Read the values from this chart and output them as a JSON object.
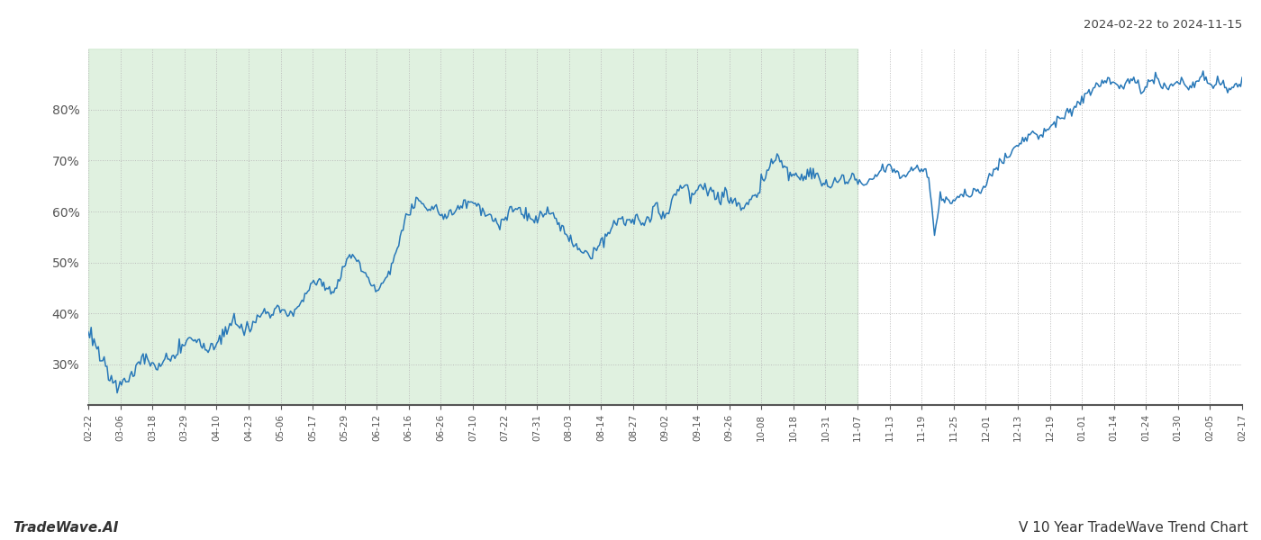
{
  "title_top_right": "2024-02-22 to 2024-11-15",
  "title_bottom_right": "V 10 Year TradeWave Trend Chart",
  "title_bottom_left": "TradeWave.AI",
  "line_color": "#2878b8",
  "bg_color": "#ffffff",
  "shaded_color": "#c8e6c8",
  "shaded_alpha": 0.55,
  "ylim": [
    22,
    92
  ],
  "yticks": [
    30,
    40,
    50,
    60,
    70,
    80
  ],
  "grid_color": "#bbbbbb",
  "grid_style": ":",
  "x_labels": [
    "02-22",
    "03-06",
    "03-18",
    "03-29",
    "04-10",
    "04-23",
    "05-06",
    "05-17",
    "05-29",
    "06-12",
    "06-16",
    "06-26",
    "07-10",
    "07-22",
    "07-31",
    "08-03",
    "08-14",
    "08-27",
    "09-02",
    "09-14",
    "09-26",
    "10-08",
    "10-18",
    "10-31",
    "11-07",
    "11-13",
    "11-19",
    "11-25",
    "12-01",
    "12-13",
    "12-19",
    "01-01",
    "01-14",
    "01-24",
    "01-30",
    "02-05",
    "02-17"
  ],
  "shaded_start_label": "02-22",
  "shaded_end_label": "11-07",
  "waypoints": [
    [
      0,
      36.0
    ],
    [
      2,
      34.5
    ],
    [
      4,
      32.0
    ],
    [
      6,
      29.5
    ],
    [
      8,
      27.0
    ],
    [
      10,
      26.0
    ],
    [
      12,
      27.5
    ],
    [
      13,
      27.0
    ],
    [
      14,
      26.5
    ],
    [
      15,
      27.5
    ],
    [
      16,
      28.5
    ],
    [
      17,
      30.0
    ],
    [
      19,
      31.5
    ],
    [
      21,
      31.0
    ],
    [
      23,
      30.0
    ],
    [
      25,
      29.5
    ],
    [
      27,
      31.0
    ],
    [
      29,
      31.5
    ],
    [
      31,
      32.0
    ],
    [
      33,
      33.5
    ],
    [
      35,
      35.5
    ],
    [
      37,
      34.5
    ],
    [
      39,
      33.5
    ],
    [
      41,
      32.5
    ],
    [
      43,
      33.5
    ],
    [
      45,
      35.0
    ],
    [
      47,
      36.5
    ],
    [
      49,
      37.5
    ],
    [
      51,
      38.5
    ],
    [
      53,
      38.0
    ],
    [
      55,
      37.0
    ],
    [
      57,
      38.0
    ],
    [
      59,
      39.5
    ],
    [
      61,
      40.5
    ],
    [
      63,
      40.0
    ],
    [
      65,
      41.5
    ],
    [
      67,
      40.5
    ],
    [
      69,
      39.5
    ],
    [
      71,
      40.5
    ],
    [
      73,
      42.0
    ],
    [
      75,
      44.0
    ],
    [
      77,
      45.5
    ],
    [
      79,
      46.5
    ],
    [
      81,
      45.5
    ],
    [
      83,
      44.5
    ],
    [
      85,
      45.5
    ],
    [
      87,
      47.5
    ],
    [
      89,
      50.5
    ],
    [
      91,
      51.5
    ],
    [
      93,
      50.0
    ],
    [
      95,
      48.0
    ],
    [
      97,
      46.0
    ],
    [
      99,
      44.5
    ],
    [
      101,
      45.5
    ],
    [
      103,
      48.0
    ],
    [
      105,
      50.5
    ],
    [
      107,
      54.0
    ],
    [
      109,
      58.5
    ],
    [
      111,
      60.5
    ],
    [
      113,
      62.5
    ],
    [
      115,
      61.5
    ],
    [
      117,
      60.0
    ],
    [
      119,
      61.5
    ],
    [
      121,
      59.5
    ],
    [
      123,
      58.5
    ],
    [
      125,
      59.5
    ],
    [
      127,
      60.5
    ],
    [
      129,
      61.5
    ],
    [
      131,
      62.0
    ],
    [
      133,
      61.5
    ],
    [
      135,
      60.5
    ],
    [
      137,
      59.5
    ],
    [
      139,
      58.5
    ],
    [
      141,
      57.5
    ],
    [
      143,
      58.5
    ],
    [
      145,
      60.0
    ],
    [
      147,
      61.0
    ],
    [
      149,
      60.0
    ],
    [
      151,
      59.0
    ],
    [
      153,
      58.0
    ],
    [
      155,
      59.0
    ],
    [
      157,
      60.0
    ],
    [
      159,
      59.5
    ],
    [
      161,
      58.5
    ],
    [
      163,
      57.0
    ],
    [
      165,
      55.5
    ],
    [
      167,
      54.0
    ],
    [
      169,
      52.5
    ],
    [
      171,
      51.5
    ],
    [
      173,
      51.0
    ],
    [
      175,
      52.5
    ],
    [
      177,
      54.0
    ],
    [
      179,
      56.0
    ],
    [
      181,
      58.0
    ],
    [
      183,
      59.0
    ],
    [
      185,
      58.5
    ],
    [
      187,
      57.5
    ],
    [
      189,
      58.5
    ],
    [
      191,
      57.5
    ],
    [
      193,
      58.5
    ],
    [
      195,
      61.0
    ],
    [
      197,
      59.0
    ],
    [
      199,
      60.0
    ],
    [
      201,
      62.0
    ],
    [
      203,
      64.0
    ],
    [
      205,
      65.5
    ],
    [
      207,
      63.0
    ],
    [
      209,
      64.0
    ],
    [
      211,
      65.0
    ],
    [
      213,
      64.0
    ],
    [
      215,
      63.0
    ],
    [
      217,
      62.0
    ],
    [
      219,
      63.5
    ],
    [
      221,
      62.5
    ],
    [
      223,
      61.5
    ],
    [
      225,
      60.5
    ],
    [
      227,
      61.5
    ],
    [
      229,
      63.0
    ],
    [
      231,
      65.0
    ],
    [
      233,
      67.0
    ],
    [
      235,
      69.5
    ],
    [
      237,
      70.5
    ],
    [
      239,
      69.0
    ],
    [
      241,
      68.0
    ],
    [
      243,
      67.0
    ],
    [
      245,
      66.0
    ],
    [
      247,
      67.0
    ],
    [
      249,
      68.0
    ],
    [
      251,
      67.0
    ],
    [
      253,
      66.0
    ],
    [
      255,
      65.0
    ],
    [
      257,
      66.0
    ],
    [
      259,
      67.0
    ],
    [
      261,
      66.0
    ],
    [
      263,
      67.0
    ],
    [
      265,
      66.0
    ],
    [
      267,
      65.0
    ],
    [
      269,
      66.0
    ],
    [
      271,
      67.0
    ],
    [
      273,
      68.0
    ],
    [
      275,
      69.0
    ],
    [
      277,
      68.0
    ],
    [
      279,
      67.5
    ],
    [
      281,
      67.0
    ],
    [
      283,
      68.0
    ],
    [
      285,
      69.0
    ],
    [
      287,
      68.5
    ],
    [
      289,
      67.5
    ],
    [
      291,
      56.0
    ],
    [
      292,
      57.0
    ],
    [
      293,
      63.0
    ],
    [
      295,
      62.0
    ],
    [
      297,
      61.5
    ],
    [
      299,
      62.5
    ],
    [
      301,
      63.5
    ],
    [
      303,
      63.0
    ],
    [
      305,
      64.0
    ],
    [
      307,
      63.5
    ],
    [
      309,
      65.5
    ],
    [
      311,
      67.5
    ],
    [
      313,
      69.0
    ],
    [
      315,
      70.5
    ],
    [
      317,
      71.5
    ],
    [
      319,
      72.5
    ],
    [
      321,
      73.5
    ],
    [
      323,
      74.5
    ],
    [
      325,
      75.5
    ],
    [
      327,
      74.5
    ],
    [
      329,
      75.5
    ],
    [
      331,
      76.5
    ],
    [
      333,
      77.5
    ],
    [
      335,
      78.5
    ],
    [
      337,
      79.5
    ],
    [
      339,
      80.5
    ],
    [
      341,
      81.5
    ],
    [
      343,
      82.5
    ],
    [
      345,
      83.5
    ],
    [
      347,
      84.5
    ],
    [
      349,
      85.5
    ],
    [
      351,
      86.0
    ],
    [
      353,
      85.5
    ],
    [
      355,
      84.5
    ],
    [
      357,
      85.5
    ],
    [
      359,
      86.0
    ],
    [
      361,
      85.0
    ],
    [
      363,
      84.5
    ],
    [
      365,
      85.5
    ],
    [
      367,
      86.0
    ],
    [
      369,
      85.0
    ],
    [
      371,
      84.0
    ],
    [
      373,
      85.0
    ],
    [
      375,
      86.0
    ],
    [
      377,
      85.0
    ],
    [
      379,
      84.5
    ],
    [
      381,
      85.5
    ],
    [
      383,
      86.5
    ],
    [
      385,
      85.5
    ],
    [
      387,
      84.5
    ],
    [
      389,
      85.5
    ],
    [
      391,
      84.5
    ],
    [
      393,
      83.5
    ],
    [
      395,
      84.5
    ],
    [
      397,
      85.0
    ]
  ]
}
